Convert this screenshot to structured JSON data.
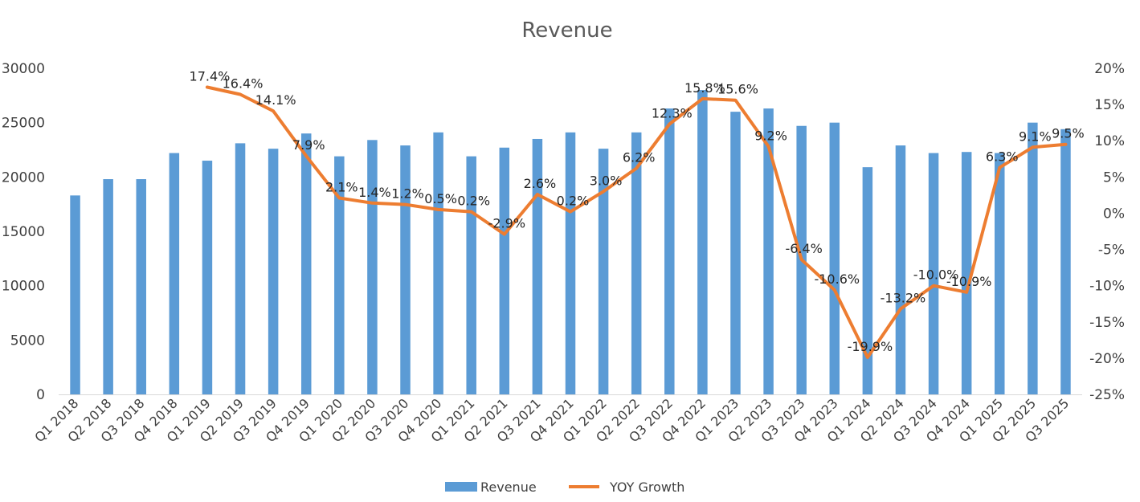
{
  "chart_data": {
    "type": "bar",
    "title": "Revenue",
    "categories": [
      "Q1 2018",
      "Q2 2018",
      "Q3 2018",
      "Q4 2018",
      "Q1 2019",
      "Q2 2019",
      "Q3 2019",
      "Q4 2019",
      "Q1 2020",
      "Q2 2020",
      "Q3 2020",
      "Q4 2020",
      "Q1 2021",
      "Q2 2021",
      "Q3 2021",
      "Q4 2021",
      "Q1 2022",
      "Q2 2022",
      "Q3 2022",
      "Q4 2022",
      "Q1 2023",
      "Q2 2023",
      "Q3 2023",
      "Q4 2023",
      "Q1 2024",
      "Q2 2024",
      "Q3 2024",
      "Q4 2024",
      "Q1 2025",
      "Q2 2025",
      "Q3 2025"
    ],
    "series": [
      {
        "name": "Revenue",
        "type": "bar",
        "axis": "left",
        "color": "#5B9BD5",
        "values": [
          18300,
          19800,
          19800,
          22200,
          21500,
          23100,
          22600,
          24000,
          21900,
          23400,
          22900,
          24100,
          21900,
          22700,
          23500,
          24100,
          22600,
          24100,
          26300,
          28000,
          26000,
          26300,
          24700,
          25000,
          20900,
          22900,
          22200,
          22300,
          22200,
          25000,
          24400
        ]
      },
      {
        "name": "YOY Growth",
        "type": "line",
        "axis": "right",
        "color": "#ED7D31",
        "values": [
          null,
          null,
          null,
          null,
          17.4,
          16.4,
          14.1,
          7.9,
          2.1,
          1.4,
          1.2,
          0.5,
          0.2,
          -2.9,
          2.6,
          0.2,
          3.0,
          6.2,
          12.3,
          15.8,
          15.6,
          9.2,
          -6.4,
          -10.6,
          -19.9,
          -13.2,
          -10.0,
          -10.9,
          6.3,
          9.1,
          9.5
        ],
        "labels": [
          "",
          "",
          "",
          "",
          "17.4%",
          "16.4%",
          "14.1%",
          "7.9%",
          "2.1%",
          "1.4%",
          "1.2%",
          "0.5%",
          "0.2%",
          "-2.9%",
          "2.6%",
          "0.2%",
          "3.0%",
          "6.2%",
          "12.3%",
          "15.8%",
          "15.6%",
          "9.2%",
          "-6.4%",
          "-10.6%",
          "-19.9%",
          "-13.2%",
          "-10.0%",
          "-10.9%",
          "6.3%",
          "9.1%",
          "9.5%"
        ]
      }
    ],
    "y_left": {
      "ylim": [
        0,
        30000
      ],
      "ticks": [
        0,
        5000,
        10000,
        15000,
        20000,
        25000,
        30000
      ],
      "tick_labels": [
        "0",
        "5000",
        "10000",
        "15000",
        "20000",
        "25000",
        "30000"
      ]
    },
    "y_right": {
      "ylim": [
        -25,
        20
      ],
      "ticks": [
        -25,
        -20,
        -15,
        -10,
        -5,
        0,
        5,
        10,
        15,
        20
      ],
      "tick_labels": [
        "-25%",
        "-20%",
        "-15%",
        "-10%",
        "-5%",
        "0%",
        "5%",
        "10%",
        "15%",
        "20%"
      ]
    },
    "grid": false,
    "legend": {
      "position": "bottom",
      "entries": [
        "Revenue",
        "YOY Growth"
      ]
    }
  }
}
